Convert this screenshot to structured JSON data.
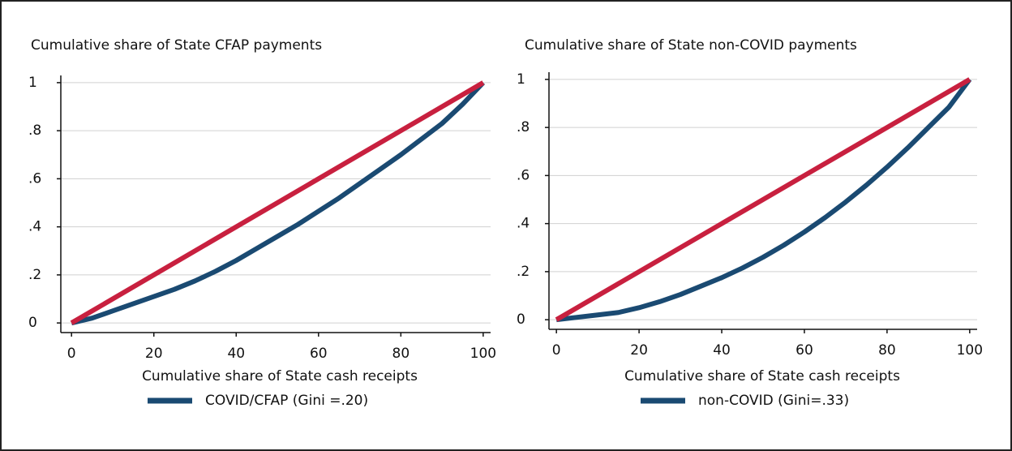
{
  "chart_data": [
    {
      "type": "line",
      "title": "Cumulative share of State CFAP payments",
      "x_label": "Cumulative share of State cash receipts",
      "x": [
        0,
        5,
        10,
        15,
        20,
        25,
        30,
        35,
        40,
        45,
        50,
        55,
        60,
        65,
        70,
        75,
        80,
        85,
        90,
        95,
        100
      ],
      "series": [
        {
          "name": "COVID/CFAP (Gini =.20)",
          "color": "#1a4a72",
          "values": [
            0,
            0.02,
            0.05,
            0.08,
            0.11,
            0.14,
            0.175,
            0.215,
            0.26,
            0.31,
            0.36,
            0.41,
            0.465,
            0.52,
            0.58,
            0.64,
            0.7,
            0.765,
            0.83,
            0.91,
            1
          ]
        },
        {
          "color": "#c8203f",
          "x": [
            0,
            100
          ],
          "values": [
            0,
            1
          ]
        }
      ],
      "xlim": [
        -2.6,
        101.8
      ],
      "ylim": [
        -0.04,
        1.03
      ],
      "xticks": [
        0,
        20,
        40,
        60,
        80,
        100
      ],
      "yticks": [
        0,
        {
          "value": 0.2,
          "label": ".2"
        },
        {
          "value": 0.4,
          "label": ".4"
        },
        {
          "value": 0.6,
          "label": ".6"
        },
        {
          "value": 0.8,
          "label": ".8"
        },
        1
      ],
      "grid": true
    },
    {
      "type": "line",
      "title": "Cumulative share of State non-COVID payments",
      "x_label": "Cumulative share of State cash receipts",
      "x": [
        0,
        5,
        10,
        15,
        20,
        25,
        30,
        35,
        40,
        45,
        50,
        55,
        60,
        65,
        70,
        75,
        80,
        85,
        90,
        95,
        100
      ],
      "series": [
        {
          "name": "non-COVID (Gini=.33)",
          "color": "#1a4a72",
          "values": [
            0,
            0.01,
            0.02,
            0.03,
            0.05,
            0.075,
            0.105,
            0.14,
            0.175,
            0.215,
            0.26,
            0.31,
            0.365,
            0.425,
            0.49,
            0.56,
            0.635,
            0.715,
            0.8,
            0.885,
            1
          ]
        },
        {
          "color": "#c8203f",
          "x": [
            0,
            100
          ],
          "values": [
            0,
            1
          ]
        }
      ],
      "xlim": [
        -1.8,
        101.8
      ],
      "ylim": [
        -0.04,
        1.03
      ],
      "xticks": [
        0,
        20,
        40,
        60,
        80,
        100
      ],
      "yticks": [
        0,
        {
          "value": 0.2,
          "label": ".2"
        },
        {
          "value": 0.4,
          "label": ".4"
        },
        {
          "value": 0.6,
          "label": ".6"
        },
        {
          "value": 0.8,
          "label": ".8"
        },
        1
      ],
      "grid": true
    }
  ]
}
